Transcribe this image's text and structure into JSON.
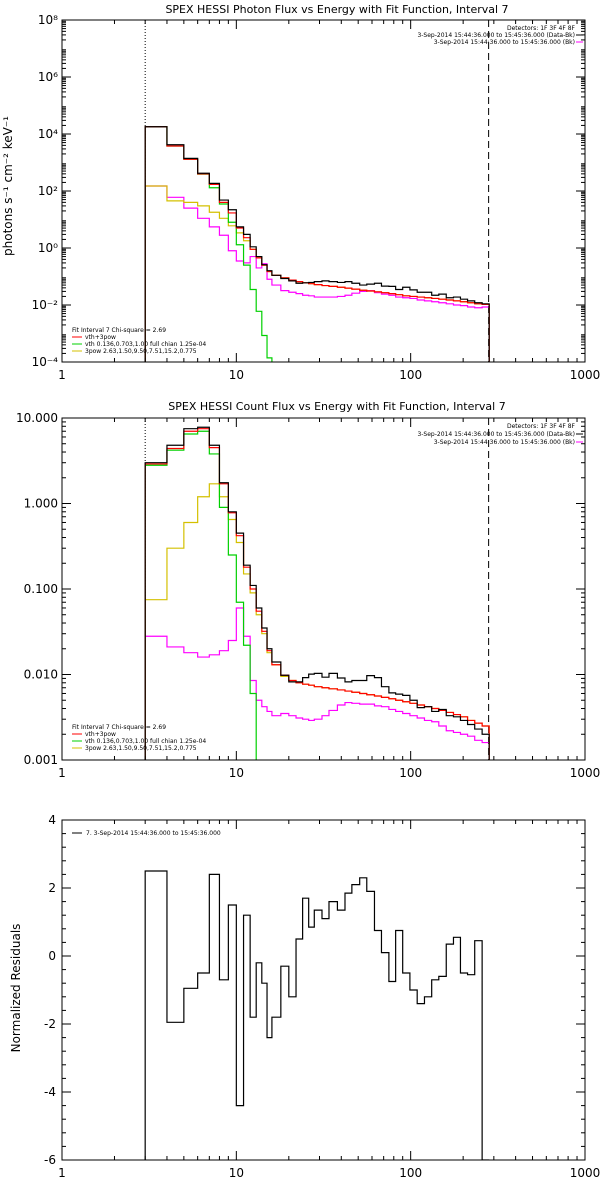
{
  "chart_data": [
    {
      "type": "line",
      "title": "SPEX HESSI Photon Flux vs Energy with Fit Function, Interval 7",
      "ylabel": "photons s⁻¹ cm⁻² keV⁻¹",
      "xlabel": "",
      "x_scale": "log",
      "y_scale": "log",
      "xlim": [
        1,
        1000
      ],
      "ylim": [
        0.0001,
        100000000
      ],
      "x_tick_labels": [
        "1",
        "10",
        "100",
        "1000"
      ],
      "y_tick_labels": [
        "10⁻⁴",
        "10⁻²",
        "10⁰",
        "10²",
        "10⁴",
        "10⁶",
        "10⁸"
      ],
      "vlines": [
        3,
        280
      ],
      "info_text": [
        "Detectors: 1F 3F 4F 8F",
        "3-Sep-2014 15:44:36.000 to 15:45:36.000 (Data-Bk)",
        "3-Sep-2014 15:44:36.000 to 15:45:36.000 (Bk)"
      ],
      "fit_text": [
        "Fit Interval 7    Chi-square = 2.69",
        "vth+3pow",
        "vth 0.136,0.703,1.00  full chian 1.25e-04",
        "3pow 2.63,1.50,9.50,7.51,15.2,0.775"
      ],
      "edges": [
        3,
        4,
        5,
        6,
        7,
        8,
        9,
        10,
        11,
        12,
        13,
        14,
        15,
        16,
        18,
        20,
        22,
        24,
        26,
        28,
        31,
        34,
        38,
        42,
        46,
        51,
        56,
        62,
        68,
        75,
        82,
        90,
        99,
        109,
        120,
        132,
        145,
        160,
        176,
        193,
        212,
        233,
        257,
        282
      ],
      "series": [
        {
          "name": "Data-Bk",
          "color": "#000000",
          "values": [
            18000,
            4200,
            1400,
            420,
            185,
            48,
            22,
            5.5,
            3.0,
            1.1,
            0.5,
            0.26,
            0.16,
            0.11,
            0.085,
            0.07,
            0.058,
            0.06,
            0.062,
            0.066,
            0.07,
            0.066,
            0.062,
            0.066,
            0.058,
            0.05,
            0.054,
            0.058,
            0.046,
            0.045,
            0.035,
            0.042,
            0.034,
            0.028,
            0.028,
            0.022,
            0.024,
            0.018,
            0.019,
            0.016,
            0.014,
            0.012,
            0.011
          ]
        },
        {
          "name": "Bk",
          "color": "#ff00ff",
          "values": [
            150,
            60,
            25,
            11,
            5.5,
            2.8,
            0.8,
            0.35,
            0.3,
            0.5,
            0.2,
            0.28,
            0.08,
            0.05,
            0.032,
            0.028,
            0.025,
            0.022,
            0.021,
            0.019,
            0.019,
            0.019,
            0.02,
            0.022,
            0.026,
            0.03,
            0.032,
            0.027,
            0.024,
            0.022,
            0.019,
            0.018,
            0.017,
            0.015,
            0.014,
            0.013,
            0.012,
            0.011,
            0.01,
            0.0095,
            0.0085,
            0.008,
            0.0085
          ]
        },
        {
          "name": "vth+3pow",
          "color": "#ff0000",
          "values": [
            18000,
            3800,
            1300,
            400,
            170,
            40,
            17,
            5.0,
            2.3,
            0.9,
            0.45,
            0.25,
            0.15,
            0.11,
            0.09,
            0.075,
            0.066,
            0.06,
            0.056,
            0.052,
            0.048,
            0.045,
            0.042,
            0.039,
            0.036,
            0.033,
            0.031,
            0.029,
            0.027,
            0.025,
            0.023,
            0.021,
            0.02,
            0.019,
            0.018,
            0.017,
            0.016,
            0.015,
            0.014,
            0.013,
            0.012,
            0.011,
            0.0105
          ]
        },
        {
          "name": "vth",
          "color": "#00d000",
          "values": [
            18000,
            3800,
            1300,
            390,
            130,
            35,
            8.0,
            1.3,
            0.25,
            0.035,
            0.006,
            0.00085,
            0.00014
          ]
        },
        {
          "name": "3pow",
          "color": "#d4c000",
          "values": [
            150,
            45,
            40,
            30,
            18,
            11,
            6.0,
            3.4,
            1.8,
            0.9,
            0.45,
            0.25,
            0.15,
            0.11,
            0.09,
            0.075,
            0.066,
            0.06,
            0.056,
            0.052,
            0.048,
            0.045,
            0.042,
            0.039,
            0.036,
            0.033,
            0.031,
            0.029,
            0.027,
            0.025,
            0.023,
            0.021,
            0.02,
            0.019,
            0.018,
            0.017,
            0.016,
            0.015,
            0.014,
            0.013,
            0.012,
            0.011,
            0.0105
          ]
        }
      ]
    },
    {
      "type": "line",
      "title": "SPEX HESSI Count Flux vs Energy with Fit Function, Interval 7",
      "xlabel": "",
      "ylabel": "",
      "x_scale": "log",
      "y_scale": "log",
      "xlim": [
        1,
        1000
      ],
      "ylim": [
        0.001,
        10
      ],
      "x_tick_labels": [
        "1",
        "10",
        "100",
        "1000"
      ],
      "y_tick_labels": [
        "0.001",
        "0.010",
        "0.100",
        "1.000",
        "10.000"
      ],
      "vlines": [
        3,
        280
      ],
      "info_text": [
        "Detectors: 1F 3F 4F 8F",
        "3-Sep-2014 15:44:36.000 to 15:45:36.000 (Data-Bk)",
        "3-Sep-2014 15:44:36.000 to 15:45:36.000 (Bk)"
      ],
      "fit_text": [
        "Fit Interval 7    Chi-square = 2.69",
        "vth+3pow",
        "vth 0.136,0.703,1.00  full chian 1.25e-04",
        "3pow 2.63,1.50,9.50,7.51,15.2,0.775"
      ],
      "edges": [
        3,
        4,
        5,
        6,
        7,
        8,
        9,
        10,
        11,
        12,
        13,
        14,
        15,
        16,
        18,
        20,
        22,
        24,
        26,
        28,
        31,
        34,
        38,
        42,
        46,
        51,
        56,
        62,
        68,
        75,
        82,
        90,
        99,
        109,
        120,
        132,
        145,
        160,
        176,
        193,
        212,
        233,
        257,
        282
      ],
      "series": [
        {
          "name": "Data-Bk",
          "color": "#000000",
          "values": [
            3.0,
            4.8,
            7.5,
            7.8,
            4.8,
            1.75,
            0.8,
            0.45,
            0.19,
            0.11,
            0.06,
            0.035,
            0.02,
            0.014,
            0.0098,
            0.0082,
            0.0082,
            0.0092,
            0.0101,
            0.0103,
            0.0093,
            0.0103,
            0.0091,
            0.0082,
            0.0085,
            0.0085,
            0.0097,
            0.0092,
            0.0072,
            0.0061,
            0.0059,
            0.0057,
            0.005,
            0.0041,
            0.0042,
            0.0037,
            0.0039,
            0.0033,
            0.0032,
            0.0029,
            0.0026,
            0.0023,
            0.002
          ]
        },
        {
          "name": "Bk",
          "color": "#ff00ff",
          "values": [
            0.028,
            0.021,
            0.018,
            0.016,
            0.017,
            0.019,
            0.025,
            0.06,
            0.028,
            0.0085,
            0.005,
            0.0042,
            0.0037,
            0.0033,
            0.0035,
            0.0033,
            0.0031,
            0.003,
            0.0029,
            0.003,
            0.0033,
            0.0038,
            0.0044,
            0.0047,
            0.0046,
            0.0045,
            0.0045,
            0.0043,
            0.0042,
            0.0039,
            0.0037,
            0.0035,
            0.0033,
            0.0031,
            0.0029,
            0.0028,
            0.0025,
            0.0022,
            0.0021,
            0.002,
            0.0019,
            0.0017,
            0.0016
          ]
        },
        {
          "name": "vth+3pow",
          "color": "#ff0000",
          "values": [
            2.9,
            4.4,
            7.0,
            7.5,
            4.5,
            1.7,
            0.78,
            0.42,
            0.18,
            0.1,
            0.055,
            0.032,
            0.019,
            0.013,
            0.0098,
            0.0085,
            0.008,
            0.0077,
            0.0075,
            0.0072,
            0.007,
            0.0068,
            0.0066,
            0.0064,
            0.0062,
            0.006,
            0.0058,
            0.0056,
            0.0054,
            0.0052,
            0.005,
            0.0048,
            0.0046,
            0.0044,
            0.0042,
            0.004,
            0.0038,
            0.0036,
            0.0034,
            0.0032,
            0.0029,
            0.0027,
            0.0025
          ]
        },
        {
          "name": "vth",
          "color": "#00d000",
          "values": [
            2.8,
            4.2,
            6.5,
            7.0,
            3.8,
            0.9,
            0.25,
            0.07,
            0.022,
            0.006,
            0.0008
          ]
        },
        {
          "name": "3pow",
          "color": "#d4c000",
          "values": [
            0.075,
            0.3,
            0.6,
            1.2,
            1.7,
            1.2,
            0.65,
            0.35,
            0.15,
            0.09,
            0.05,
            0.03,
            0.018,
            0.013,
            0.0095,
            0.0085,
            0.008,
            0.0077,
            0.0075,
            0.0072,
            0.007,
            0.0068,
            0.0066,
            0.0064,
            0.0062,
            0.006,
            0.0058,
            0.0056,
            0.0054,
            0.0052,
            0.005,
            0.0048,
            0.0046,
            0.0044,
            0.0042,
            0.004,
            0.0038,
            0.0036,
            0.0034,
            0.0032,
            0.0029,
            0.0027,
            0.0025
          ]
        }
      ]
    },
    {
      "type": "line",
      "title": "",
      "xlabel": "",
      "ylabel": "Normalized Residuals",
      "x_scale": "log",
      "y_scale": "linear",
      "xlim": [
        1,
        1000
      ],
      "ylim": [
        -6,
        4
      ],
      "x_tick_labels": [
        "1",
        "10",
        "100",
        "1000"
      ],
      "y_tick_labels": [
        "-6",
        "-4",
        "-2",
        "0",
        "2",
        "4"
      ],
      "legend": "7.  3-Sep-2014 15:44:36.000 to 15:45:36.000",
      "edges": [
        3,
        4,
        5,
        6,
        7,
        8,
        9,
        10,
        11,
        12,
        13,
        14,
        15,
        16,
        18,
        20,
        22,
        24,
        26,
        28,
        31,
        34,
        38,
        42,
        46,
        51,
        56,
        62,
        68,
        75,
        82,
        90,
        99,
        109,
        120,
        132,
        145,
        160,
        176,
        193,
        212,
        233,
        257,
        282
      ],
      "series": [
        {
          "name": "residuals",
          "color": "#000000",
          "values": [
            2.5,
            -1.95,
            -0.95,
            -0.5,
            2.4,
            -0.7,
            1.5,
            -4.4,
            1.2,
            -1.8,
            -0.2,
            -0.8,
            -2.4,
            -1.8,
            -0.3,
            -1.2,
            0.5,
            1.7,
            0.85,
            1.35,
            1.1,
            1.6,
            1.35,
            1.85,
            2.1,
            2.3,
            1.9,
            0.75,
            0.1,
            -0.75,
            0.75,
            -0.5,
            -1.0,
            -1.4,
            -1.2,
            -0.7,
            -0.6,
            0.35,
            0.55,
            -0.5,
            -0.55,
            0.45,
            -6.0
          ]
        }
      ]
    }
  ]
}
